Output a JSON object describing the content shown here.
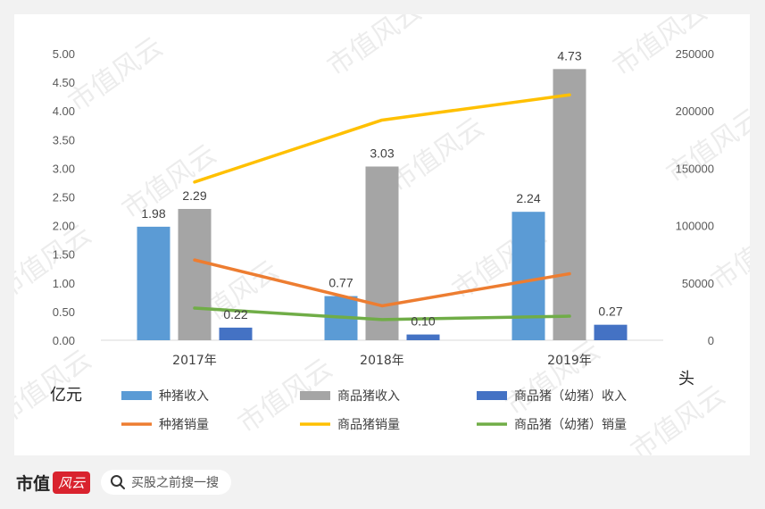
{
  "chart_data": {
    "type": "bar",
    "categories": [
      "2017年",
      "2018年",
      "2019年"
    ],
    "left_axis": {
      "unit_label": "亿元",
      "ylim": [
        0,
        5
      ],
      "ticks": [
        "0.00",
        "0.50",
        "1.00",
        "1.50",
        "2.00",
        "2.50",
        "3.00",
        "3.50",
        "4.00",
        "4.50",
        "5.00"
      ]
    },
    "right_axis": {
      "unit_label": "头",
      "ylim": [
        0,
        250000
      ],
      "ticks": [
        "0",
        "50000",
        "100000",
        "150000",
        "200000",
        "250000"
      ]
    },
    "bar_series": [
      {
        "name": "种猪收入",
        "color": "#5b9bd5",
        "values": [
          1.98,
          0.77,
          2.24
        ],
        "labels": [
          "1.98",
          "0.77",
          "2.24"
        ]
      },
      {
        "name": "商品猪收入",
        "color": "#a5a5a5",
        "values": [
          2.29,
          3.03,
          4.73
        ],
        "labels": [
          "2.29",
          "3.03",
          "4.73"
        ]
      },
      {
        "name": "商品猪（幼猪）收入",
        "color": "#4472c4",
        "values": [
          0.22,
          0.1,
          0.27
        ],
        "labels": [
          "0.22",
          "0.10",
          "0.27"
        ]
      }
    ],
    "line_series": [
      {
        "name": "种猪销量",
        "color": "#ed7d31",
        "values": [
          70000,
          30000,
          58000
        ]
      },
      {
        "name": "商品猪销量",
        "color": "#ffc000",
        "values": [
          138000,
          192000,
          214000
        ]
      },
      {
        "name": "商品猪（幼猪）销量",
        "color": "#70ad47",
        "values": [
          28000,
          18000,
          21000
        ]
      }
    ],
    "legend_position": "bottom",
    "grid": false
  },
  "watermark": "市值风云",
  "footer": {
    "brand": "市值",
    "brand_badge": "风云",
    "search_placeholder": "买股之前搜一搜"
  }
}
